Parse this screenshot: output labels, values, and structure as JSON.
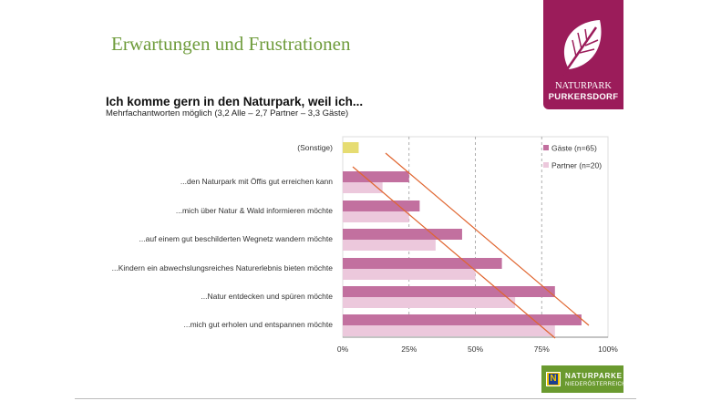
{
  "slide": {
    "title": "Erwartungen und Frustrationen"
  },
  "logo": {
    "line1": "NATURPARK",
    "line2": "PURKERSDORF"
  },
  "footer_logo": {
    "badge": "N",
    "line1": "NATURPARKE",
    "line2": "NIEDERÖSTERREICH"
  },
  "colors": {
    "gaeste": "#c2709f",
    "partner": "#ecc8dc",
    "sonstige": "#e6dc72",
    "annotation_lines": "#e0652f",
    "title_green": "#6f9c3c",
    "brand": "#9b1c5a"
  },
  "chart_data": {
    "type": "bar",
    "orientation": "horizontal",
    "title": "Ich komme gern in den Naturpark, weil ich...",
    "subtitle": "Mehrfachantworten möglich (3,2 Alle – 2,7 Partner – 3,3 Gäste)",
    "categories": [
      "(Sonstige)",
      "...den Naturpark mit Öffis gut erreichen kann",
      "...mich über Natur & Wald informieren möchte",
      "...auf einem gut beschilderten Wegnetz wandern möchte",
      "...Kindern ein abwechslungsreiches Naturerlebnis bieten möchte",
      "...Natur entdecken und spüren möchte",
      "...mich gut erholen und entspannen möchte"
    ],
    "series": [
      {
        "name": "Gäste (n=65)",
        "values": [
          6,
          25,
          29,
          45,
          60,
          80,
          90
        ]
      },
      {
        "name": "Partner (n=20)",
        "values": [
          null,
          15,
          25,
          35,
          50,
          65,
          80
        ]
      }
    ],
    "xlim": [
      0,
      100
    ],
    "x_ticks": [
      "0%",
      "25%",
      "50%",
      "75%",
      "100%"
    ],
    "grid": "vertical dashed",
    "legend": "top-right",
    "annotations": "two orange diagonal trend lines"
  }
}
